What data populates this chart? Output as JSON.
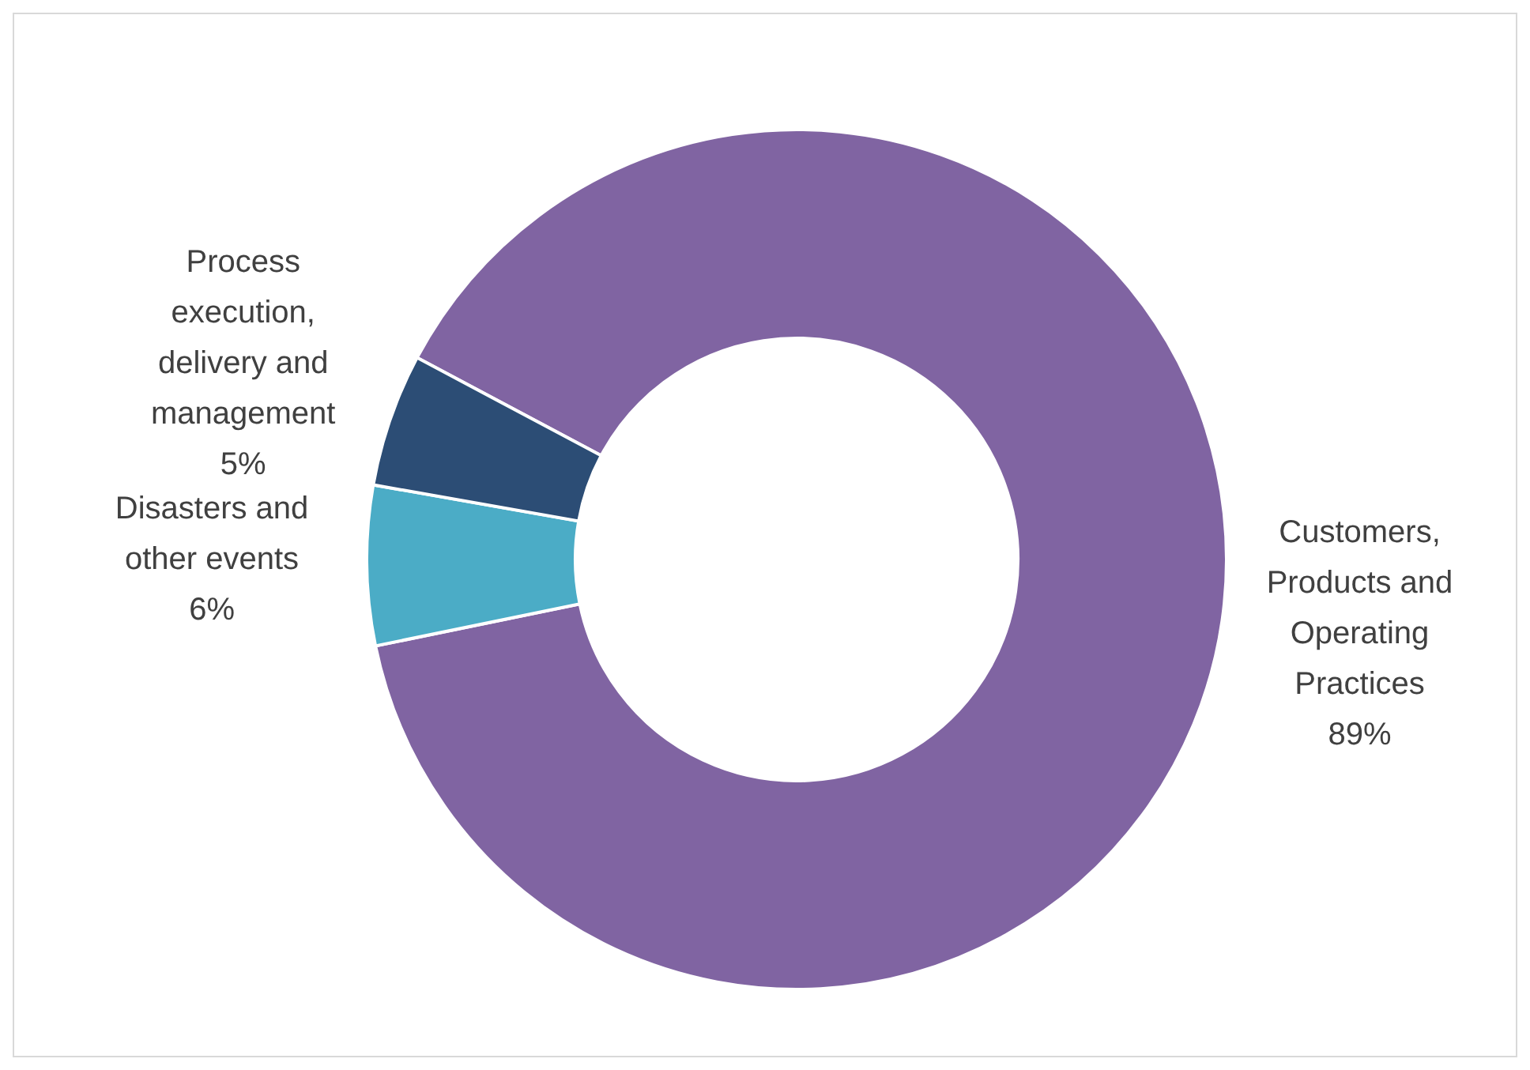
{
  "chart_data": {
    "type": "donut",
    "categories": [
      "Customers, Products and Operating Practices",
      "Disasters and other events",
      "Process execution, delivery and management"
    ],
    "values": [
      89,
      6,
      5
    ],
    "value_labels": [
      "89%",
      "6%",
      "5%"
    ],
    "colors": [
      "#8064a2",
      "#4bacc6",
      "#2c4d75"
    ],
    "legend": false
  }
}
